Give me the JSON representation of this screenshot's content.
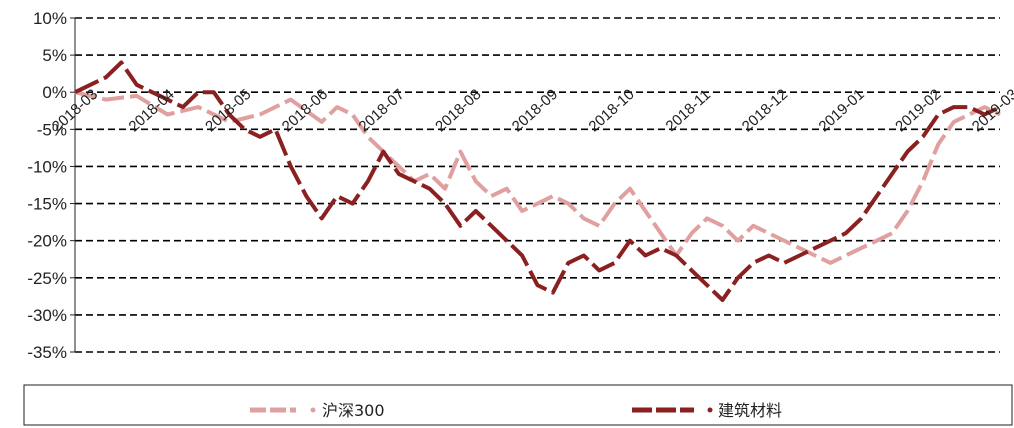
{
  "chart_data": {
    "type": "line",
    "ylim": [
      -35,
      10
    ],
    "y_ticks": [
      "10%",
      "5%",
      "0%",
      "-5%",
      "-10%",
      "-15%",
      "-20%",
      "-25%",
      "-30%",
      "-35%"
    ],
    "x_labels": [
      "2018-03",
      "2018-04",
      "2018-05",
      "2018-06",
      "2018-07",
      "2018-08",
      "2018-09",
      "2018-10",
      "2018-11",
      "2018-12",
      "2019-01",
      "2019-02",
      "2019-03"
    ],
    "grid": "horizontal dashed",
    "legend_position": "bottom",
    "series": [
      {
        "name": "沪深300",
        "color": "#e0a0a0",
        "dash": "dashed",
        "points": [
          [
            0,
            0
          ],
          [
            10,
            -1
          ],
          [
            20,
            -0.5
          ],
          [
            30,
            -3
          ],
          [
            40,
            -2
          ],
          [
            50,
            -4
          ],
          [
            60,
            -3
          ],
          [
            70,
            -1
          ],
          [
            80,
            -4
          ],
          [
            85,
            -2
          ],
          [
            90,
            -3
          ],
          [
            95,
            -6
          ],
          [
            100,
            -8
          ],
          [
            105,
            -10
          ],
          [
            110,
            -12
          ],
          [
            115,
            -11
          ],
          [
            120,
            -13
          ],
          [
            125,
            -8
          ],
          [
            130,
            -12
          ],
          [
            135,
            -14
          ],
          [
            140,
            -13
          ],
          [
            145,
            -16
          ],
          [
            150,
            -15
          ],
          [
            155,
            -14
          ],
          [
            160,
            -15
          ],
          [
            165,
            -17
          ],
          [
            170,
            -18
          ],
          [
            175,
            -15
          ],
          [
            180,
            -13
          ],
          [
            185,
            -16
          ],
          [
            190,
            -19
          ],
          [
            195,
            -22
          ],
          [
            200,
            -19
          ],
          [
            205,
            -17
          ],
          [
            210,
            -18
          ],
          [
            215,
            -20
          ],
          [
            220,
            -18
          ],
          [
            225,
            -19
          ],
          [
            230,
            -20
          ],
          [
            235,
            -21
          ],
          [
            240,
            -22
          ],
          [
            245,
            -23
          ],
          [
            250,
            -22
          ],
          [
            255,
            -21
          ],
          [
            260,
            -20
          ],
          [
            265,
            -19
          ],
          [
            270,
            -16
          ],
          [
            275,
            -12
          ],
          [
            280,
            -7
          ],
          [
            285,
            -4
          ],
          [
            290,
            -3
          ],
          [
            295,
            -2
          ],
          [
            300,
            -3
          ]
        ]
      },
      {
        "name": "建筑材料",
        "color": "#8b2020",
        "dash": "dashed",
        "points": [
          [
            0,
            0
          ],
          [
            10,
            2
          ],
          [
            15,
            4
          ],
          [
            20,
            1
          ],
          [
            25,
            0
          ],
          [
            30,
            -1
          ],
          [
            35,
            -2
          ],
          [
            40,
            0
          ],
          [
            45,
            0
          ],
          [
            50,
            -3
          ],
          [
            55,
            -5
          ],
          [
            60,
            -6
          ],
          [
            65,
            -5
          ],
          [
            70,
            -10
          ],
          [
            75,
            -14
          ],
          [
            80,
            -17
          ],
          [
            85,
            -14
          ],
          [
            90,
            -15
          ],
          [
            95,
            -12
          ],
          [
            100,
            -8
          ],
          [
            105,
            -11
          ],
          [
            110,
            -12
          ],
          [
            115,
            -13
          ],
          [
            120,
            -15
          ],
          [
            125,
            -18
          ],
          [
            130,
            -16
          ],
          [
            135,
            -18
          ],
          [
            140,
            -20
          ],
          [
            145,
            -22
          ],
          [
            150,
            -26
          ],
          [
            155,
            -27
          ],
          [
            160,
            -23
          ],
          [
            165,
            -22
          ],
          [
            170,
            -24
          ],
          [
            175,
            -23
          ],
          [
            180,
            -20
          ],
          [
            185,
            -22
          ],
          [
            190,
            -21
          ],
          [
            195,
            -22
          ],
          [
            200,
            -24
          ],
          [
            205,
            -26
          ],
          [
            210,
            -28
          ],
          [
            215,
            -25
          ],
          [
            220,
            -23
          ],
          [
            225,
            -22
          ],
          [
            230,
            -23
          ],
          [
            235,
            -22
          ],
          [
            240,
            -21
          ],
          [
            245,
            -20
          ],
          [
            250,
            -19
          ],
          [
            255,
            -17
          ],
          [
            260,
            -14
          ],
          [
            265,
            -11
          ],
          [
            270,
            -8
          ],
          [
            275,
            -6
          ],
          [
            280,
            -3
          ],
          [
            285,
            -2
          ],
          [
            290,
            -2
          ],
          [
            295,
            -3
          ],
          [
            300,
            -2
          ]
        ]
      }
    ]
  }
}
